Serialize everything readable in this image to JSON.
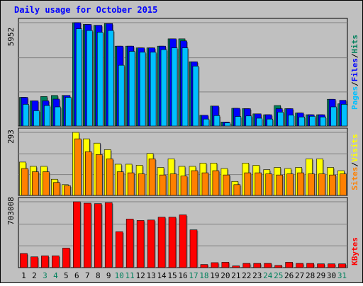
{
  "chart_data": [
    {
      "type": "bar",
      "title": "Daily usage for October 2015",
      "ylabel_max": "5952",
      "legend": [
        "Pages",
        "Files",
        "Hits"
      ],
      "categories": [
        "1",
        "2",
        "3",
        "4",
        "5",
        "6",
        "7",
        "8",
        "9",
        "10",
        "11",
        "12",
        "13",
        "14",
        "15",
        "16",
        "17",
        "18",
        "19",
        "20",
        "21",
        "22",
        "23",
        "24",
        "25",
        "26",
        "27",
        "28",
        "29",
        "30",
        "31"
      ],
      "weekend_days": [
        "3",
        "4",
        "10",
        "11",
        "17",
        "18",
        "24",
        "25",
        "31"
      ],
      "ylim": [
        0,
        5952
      ],
      "series": [
        {
          "name": "Hits",
          "values": [
            1650,
            1450,
            1700,
            1760,
            1760,
            5952,
            5850,
            5800,
            5900,
            4600,
            4600,
            4500,
            4500,
            4600,
            5020,
            5020,
            3700,
            620,
            1150,
            230,
            1020,
            1000,
            700,
            650,
            1180,
            1000,
            750,
            650,
            650,
            1540,
            1280
          ]
        },
        {
          "name": "Files",
          "values": [
            1250,
            880,
            1180,
            1100,
            1650,
            5600,
            5500,
            5400,
            5500,
            3500,
            4300,
            4250,
            4250,
            4400,
            4500,
            4500,
            3450,
            400,
            600,
            180,
            550,
            580,
            450,
            400,
            800,
            630,
            520,
            560,
            520,
            1100,
            1250
          ]
        },
        {
          "name": "Pages",
          "values": [
            1650,
            1450,
            1450,
            1550,
            1760,
            5952,
            5850,
            5800,
            5900,
            4600,
            4600,
            4500,
            4500,
            4600,
            5020,
            4900,
            3700,
            620,
            1150,
            230,
            1020,
            1000,
            700,
            650,
            1000,
            1000,
            750,
            650,
            650,
            1540,
            1480
          ]
        }
      ]
    },
    {
      "type": "bar",
      "ylabel_max": "293",
      "legend": [
        "Sites",
        "Visits"
      ],
      "categories": [
        "1",
        "2",
        "3",
        "4",
        "5",
        "6",
        "7",
        "8",
        "9",
        "10",
        "11",
        "12",
        "13",
        "14",
        "15",
        "16",
        "17",
        "18",
        "19",
        "20",
        "21",
        "22",
        "23",
        "24",
        "25",
        "26",
        "27",
        "28",
        "29",
        "30",
        "31"
      ],
      "ylim": [
        0,
        293
      ],
      "series": [
        {
          "name": "Visits",
          "values": [
            155,
            135,
            135,
            75,
            50,
            293,
            263,
            243,
            213,
            145,
            145,
            140,
            195,
            130,
            170,
            135,
            135,
            150,
            150,
            125,
            65,
            150,
            140,
            120,
            130,
            125,
            130,
            170,
            170,
            130,
            115
          ]
        },
        {
          "name": "Sites",
          "values": [
            125,
            110,
            110,
            60,
            45,
            263,
            203,
            190,
            170,
            110,
            105,
            100,
            170,
            95,
            100,
            90,
            115,
            105,
            115,
            95,
            50,
            105,
            105,
            100,
            95,
            100,
            105,
            100,
            100,
            95,
            100
          ]
        }
      ]
    },
    {
      "type": "bar",
      "ylabel_max": "703008",
      "legend": [
        "KBytes"
      ],
      "categories": [
        "1",
        "2",
        "3",
        "4",
        "5",
        "6",
        "7",
        "8",
        "9",
        "10",
        "11",
        "12",
        "13",
        "14",
        "15",
        "16",
        "17",
        "18",
        "19",
        "20",
        "21",
        "22",
        "23",
        "24",
        "25",
        "26",
        "27",
        "28",
        "29",
        "30",
        "31"
      ],
      "ylim": [
        0,
        703008
      ],
      "series": [
        {
          "name": "KBytes",
          "values": [
            150000,
            115000,
            125000,
            125000,
            208000,
            703008,
            688000,
            683000,
            693000,
            383000,
            518000,
            503000,
            508000,
            538000,
            538000,
            563000,
            403000,
            33000,
            53000,
            57000,
            18000,
            45000,
            45000,
            45000,
            23000,
            57000,
            45000,
            45000,
            40000,
            40000,
            40000
          ]
        }
      ]
    }
  ],
  "colors": {
    "hits": "#00805c",
    "files": "#00c0ff",
    "pages": "#0000ff",
    "visits": "#ffff00",
    "sites": "#ff8000",
    "kbytes": "#ff0000",
    "day_label": "#000000",
    "weekend_label": "#00805c",
    "title": "#0000ff",
    "panel_bg": "#c0c0c0"
  }
}
